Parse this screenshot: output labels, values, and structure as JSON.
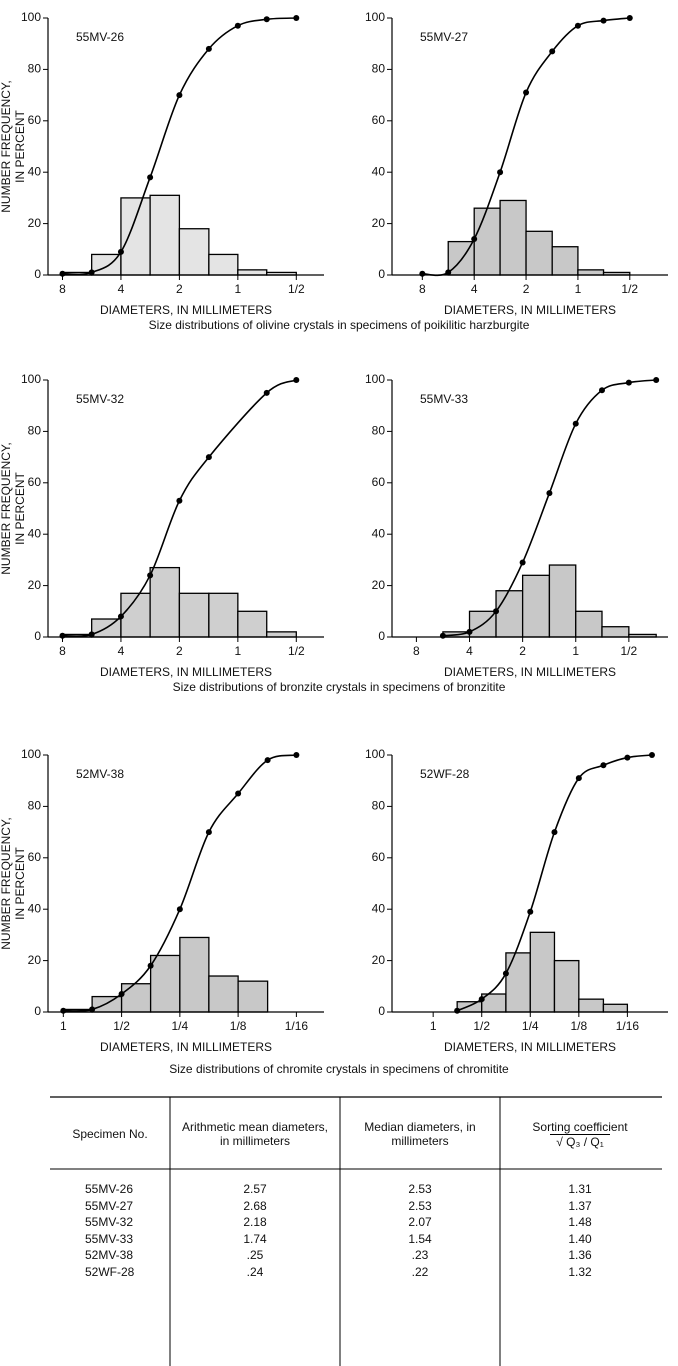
{
  "chart_data": [
    {
      "type": "histogram",
      "title": "55MV-26",
      "ylabel": [
        "NUMBER FREQUENCY,",
        "IN PERCENT"
      ],
      "xlabel": "DIAMETERS, IN MILLIMETERS",
      "bins": [
        8,
        5.66,
        4,
        2.83,
        2,
        1.41,
        1,
        0.71,
        0.5
      ],
      "counts": [
        1,
        8,
        30,
        31,
        18,
        8,
        2,
        1
      ],
      "color": "#e4e4e4",
      "cumulative": {
        "x": [
          8,
          5.66,
          4,
          2.83,
          2,
          1.41,
          1,
          0.71,
          0.5
        ],
        "values": [
          0.5,
          1,
          9,
          38,
          70,
          88,
          97,
          99.5,
          100
        ]
      },
      "log_x": true,
      "xlim": [
        9.5,
        0.36
      ],
      "xticks": [
        8,
        4,
        2,
        1,
        {
          "value": 0.5,
          "label": "1/2"
        }
      ],
      "ylim": [
        0,
        100
      ],
      "yticks": [
        0,
        20,
        40,
        60,
        80,
        100
      ]
    },
    {
      "type": "histogram",
      "title": "55MV-27",
      "xlabel": "DIAMETERS, IN MILLIMETERS",
      "bins": [
        5.66,
        4,
        2.83,
        2,
        1.41,
        1,
        0.71,
        0.5
      ],
      "counts": [
        13,
        26,
        29,
        17,
        11,
        2,
        1
      ],
      "color": "#c8c8c8",
      "cumulative": {
        "x": [
          8,
          5.66,
          4,
          2.83,
          2,
          1.41,
          1,
          0.71,
          0.5
        ],
        "values": [
          0.5,
          1,
          14,
          40,
          71,
          87,
          97,
          99,
          100
        ]
      },
      "log_x": true,
      "xlim": [
        12,
        0.3
      ],
      "xticks": [
        8,
        4,
        2,
        1,
        {
          "value": 0.5,
          "label": "1/2"
        }
      ],
      "ylim": [
        0,
        100
      ],
      "yticks": [
        0,
        20,
        40,
        60,
        80,
        100
      ]
    },
    {
      "type": "histogram",
      "title": "55MV-32",
      "ylabel": [
        "NUMBER FREQUENCY,",
        "IN PERCENT"
      ],
      "xlabel": "DIAMETERS, IN MILLIMETERS",
      "bins": [
        8,
        5.66,
        4,
        2.83,
        2,
        1.41,
        1,
        0.71,
        0.5
      ],
      "counts": [
        1,
        7,
        17,
        27,
        17,
        17,
        10,
        2
      ],
      "color": "#cfcfcf",
      "cumulative": {
        "x": [
          8,
          5.66,
          4,
          2.83,
          2,
          1.41,
          0.71,
          0.5
        ],
        "values": [
          0.5,
          1,
          8,
          24,
          53,
          70,
          95,
          100
        ]
      },
      "log_x": true,
      "xlim": [
        9.5,
        0.36
      ],
      "xticks": [
        8,
        4,
        2,
        1,
        {
          "value": 0.5,
          "label": "1/2"
        }
      ],
      "ylim": [
        0,
        100
      ],
      "yticks": [
        0,
        20,
        40,
        60,
        80,
        100
      ]
    },
    {
      "type": "histogram",
      "title": "55MV-33",
      "xlabel": "DIAMETERS, IN MILLIMETERS",
      "bins": [
        5.66,
        4,
        2.83,
        2,
        1.41,
        1,
        0.71,
        0.5,
        0.35
      ],
      "counts": [
        2,
        10,
        18,
        24,
        28,
        10,
        4,
        1
      ],
      "color": "#c8c8c8",
      "cumulative": {
        "x": [
          5.66,
          4,
          2.83,
          2,
          1.41,
          1,
          0.71,
          0.5,
          0.35
        ],
        "values": [
          0.5,
          2,
          10,
          29,
          56,
          83,
          96,
          99,
          100
        ]
      },
      "log_x": true,
      "xlim": [
        11,
        0.3
      ],
      "xticks": [
        8,
        4,
        2,
        1,
        {
          "value": 0.5,
          "label": "1/2"
        }
      ],
      "ylim": [
        0,
        100
      ],
      "yticks": [
        0,
        20,
        40,
        60,
        80,
        100
      ]
    },
    {
      "type": "histogram",
      "title": "52MV-38",
      "ylabel": [
        "NUMBER FREQUENCY,",
        "IN PERCENT"
      ],
      "xlabel": "DIAMETERS, IN MILLIMETERS",
      "bins": [
        1,
        0.71,
        0.5,
        0.354,
        0.25,
        0.177,
        0.125,
        0.088
      ],
      "counts": [
        1,
        6,
        11,
        22,
        29,
        14,
        12
      ],
      "color": "#c8c8c8",
      "cumulative": {
        "x": [
          1,
          0.71,
          0.5,
          0.354,
          0.25,
          0.177,
          0.125,
          0.088,
          0.0625
        ],
        "values": [
          0.5,
          1,
          7,
          18,
          40,
          70,
          85,
          98,
          100
        ]
      },
      "log_x": true,
      "xlim": [
        1.2,
        0.045
      ],
      "xticks": [
        1,
        {
          "value": 0.5,
          "label": "1/2"
        },
        {
          "value": 0.25,
          "label": "1/4"
        },
        {
          "value": 0.125,
          "label": "1/8"
        },
        {
          "value": 0.0625,
          "label": "1/16"
        }
      ],
      "ylim": [
        0,
        100
      ],
      "yticks": [
        0,
        20,
        40,
        60,
        80,
        100
      ]
    },
    {
      "type": "histogram",
      "title": "52WF-28",
      "xlabel": "DIAMETERS, IN MILLIMETERS",
      "bins": [
        0.71,
        0.5,
        0.354,
        0.25,
        0.177,
        0.125,
        0.088,
        0.0625
      ],
      "counts": [
        4,
        7,
        23,
        31,
        20,
        5,
        3
      ],
      "color": "#c8c8c8",
      "cumulative": {
        "x": [
          0.71,
          0.5,
          0.354,
          0.25,
          0.177,
          0.125,
          0.088,
          0.0625,
          0.044
        ],
        "values": [
          0.5,
          5,
          15,
          39,
          70,
          91,
          96,
          99,
          100
        ]
      },
      "log_x": true,
      "xlim": [
        1.8,
        0.035
      ],
      "xticks": [
        1,
        {
          "value": 0.5,
          "label": "1/2"
        },
        {
          "value": 0.25,
          "label": "1/4"
        },
        {
          "value": 0.125,
          "label": "1/8"
        },
        {
          "value": 0.0625,
          "label": "1/16"
        }
      ],
      "ylim": [
        0,
        100
      ],
      "yticks": [
        0,
        20,
        40,
        60,
        80,
        100
      ]
    }
  ],
  "captions": [
    "Size distributions of olivine crystals in specimens of poikilitic harzburgite",
    "Size distributions of bronzite crystals in specimens of bronzitite",
    "Size distributions of chromite crystals in specimens of chromitite"
  ],
  "table": {
    "header": [
      "Specimen No.",
      "Arithmetic mean diameters, in millimeters",
      "Median diameters, in millimeters",
      "Sorting coefficient"
    ],
    "formula": "√ Q₃ / Q₁",
    "rows": [
      [
        "55MV-26",
        "2.57",
        "2.53",
        "1.31"
      ],
      [
        "55MV-27",
        "2.68",
        "2.53",
        "1.37"
      ],
      [
        "55MV-32",
        "2.18",
        "2.07",
        "1.48"
      ],
      [
        "55MV-33",
        "1.74",
        "1.54",
        "1.40"
      ],
      [
        "52MV-38",
        ".25",
        ".23",
        "1.36"
      ],
      [
        "52WF-28",
        ".24",
        ".22",
        "1.32"
      ]
    ]
  }
}
